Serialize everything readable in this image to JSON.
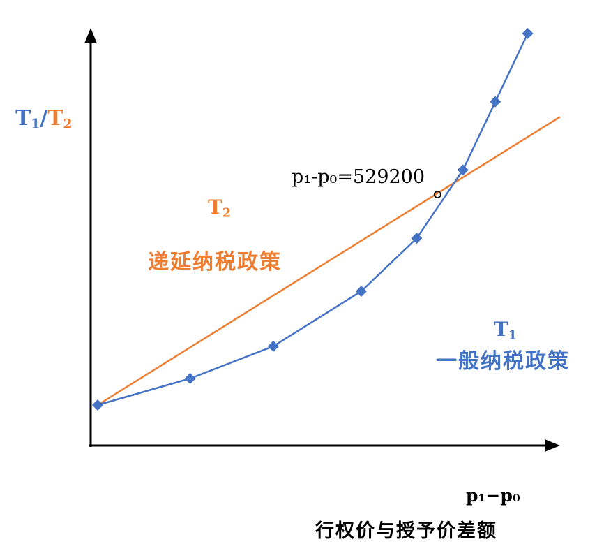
{
  "chart_data": {
    "type": "line",
    "xlabel_symbol": "p₁−p₀",
    "xlabel": "行权价与授予价差额",
    "ylabel": "T₁/T₂",
    "ylabel_parts": {
      "a": "T",
      "a_sub": "1",
      "sep": "/",
      "b": "T",
      "b_sub": "2"
    },
    "grid": false,
    "legend": "none",
    "series": [
      {
        "name": "T₁",
        "symbol": "T",
        "symbol_sub": "1",
        "label": "一般纳税政策",
        "color": "#4472c4",
        "marker": "diamond",
        "x": [
          0.0,
          0.2,
          0.38,
          0.57,
          0.69,
          0.79,
          0.86,
          0.93
        ],
        "y": [
          0.0,
          0.07,
          0.155,
          0.3,
          0.44,
          0.62,
          0.8,
          0.98
        ]
      },
      {
        "name": "T₂",
        "symbol": "T",
        "symbol_sub": "2",
        "label": "递延纳税政策",
        "color": "#ed7d31",
        "marker": "none",
        "x": [
          0.0,
          1.0
        ],
        "y": [
          0.0,
          0.76
        ]
      }
    ],
    "annotations": [
      {
        "text": "p₁-p₀=529200",
        "x": 0.735,
        "y": 0.555,
        "marker": "circle"
      }
    ]
  },
  "colors": {
    "axis": "#000000",
    "blue": "#4472c4",
    "orange": "#ed7d31"
  }
}
